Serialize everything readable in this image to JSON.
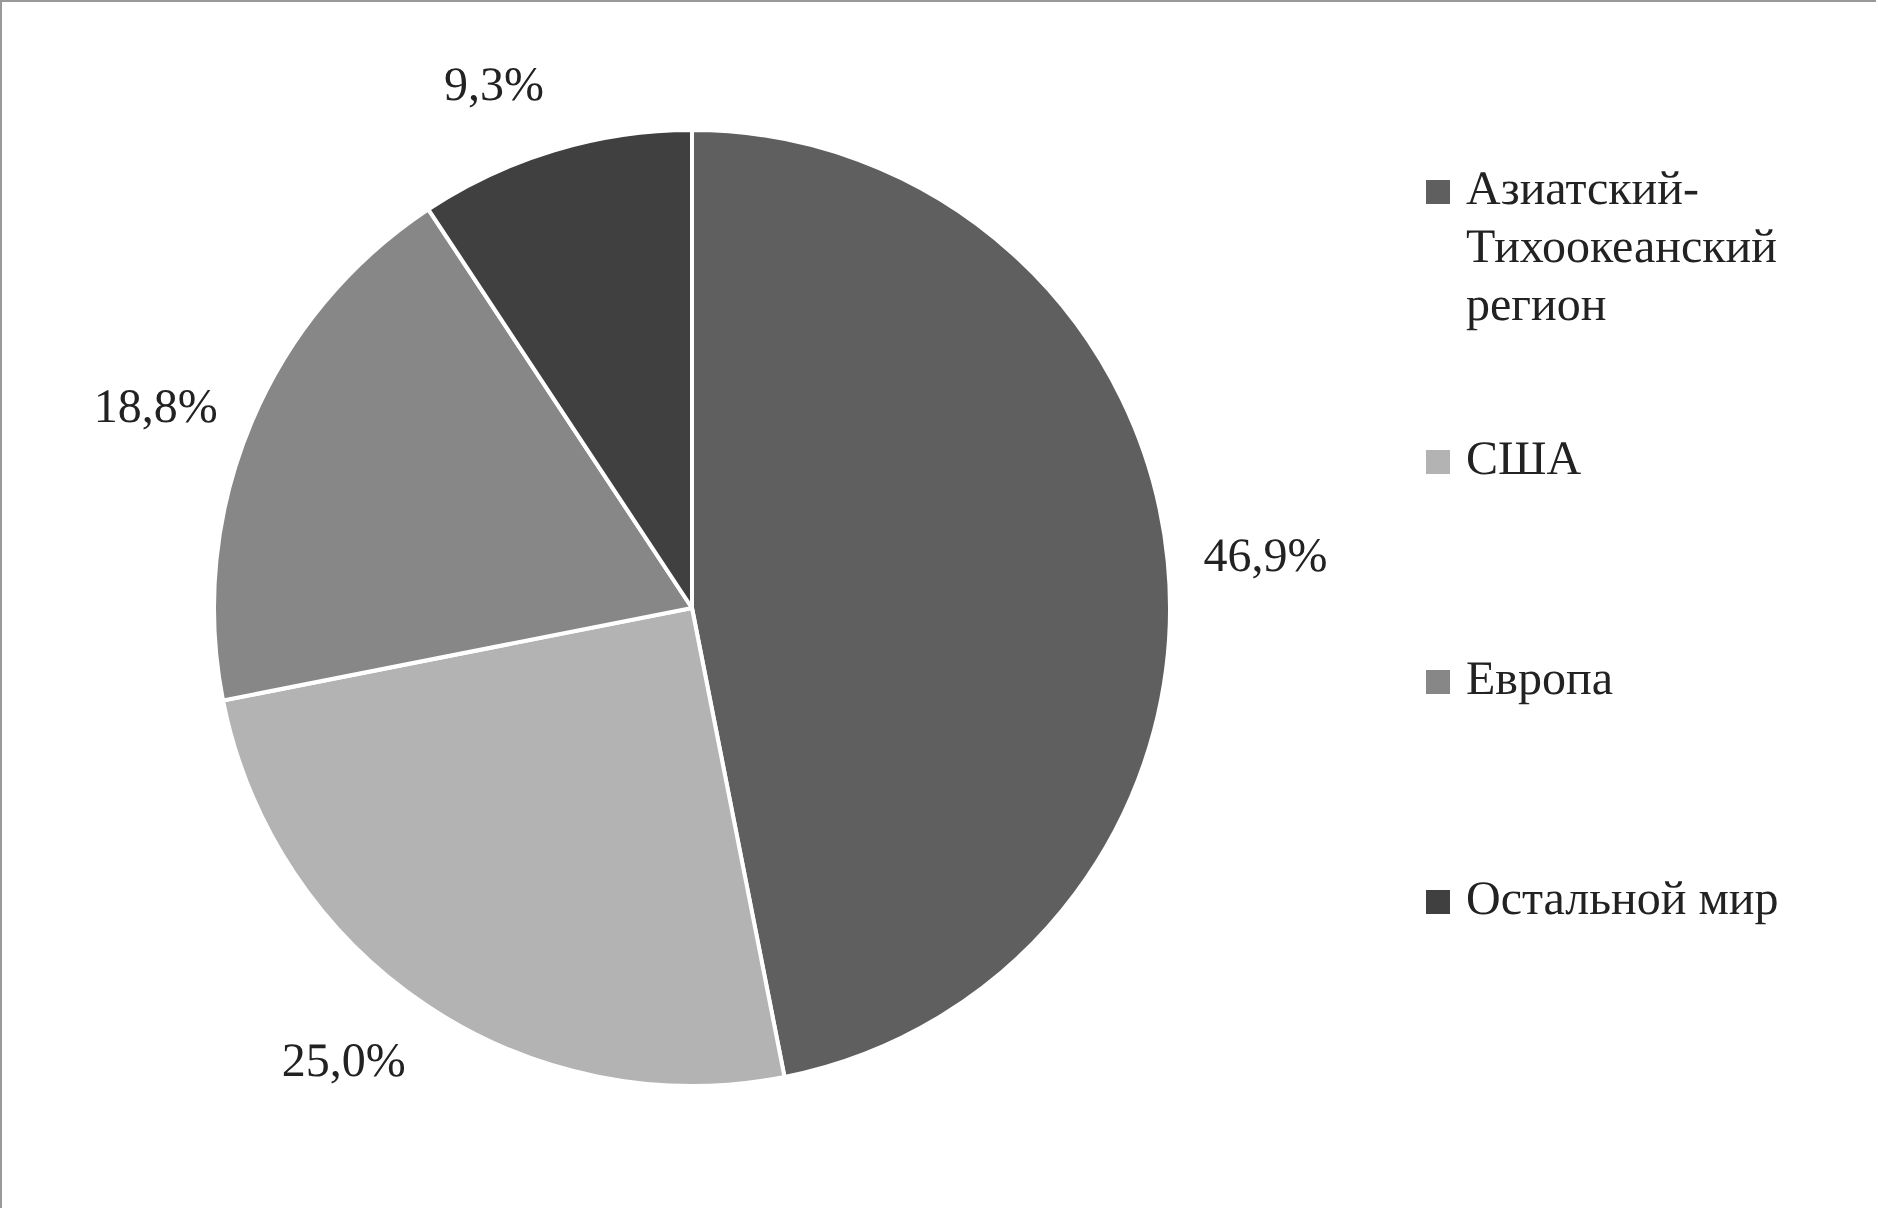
{
  "chart_data": {
    "type": "pie",
    "categories": [
      "Азиатский-Тихоокеанский регион",
      "США",
      "Европа",
      "Остальной мир"
    ],
    "values": [
      46.9,
      25.0,
      18.8,
      9.3
    ],
    "colors": [
      "#5f5f5f",
      "#b3b3b3",
      "#878787",
      "#404040"
    ],
    "value_labels": [
      "46,9%",
      "25,0%",
      "18,8%",
      "9,3%"
    ],
    "legend": "right"
  }
}
